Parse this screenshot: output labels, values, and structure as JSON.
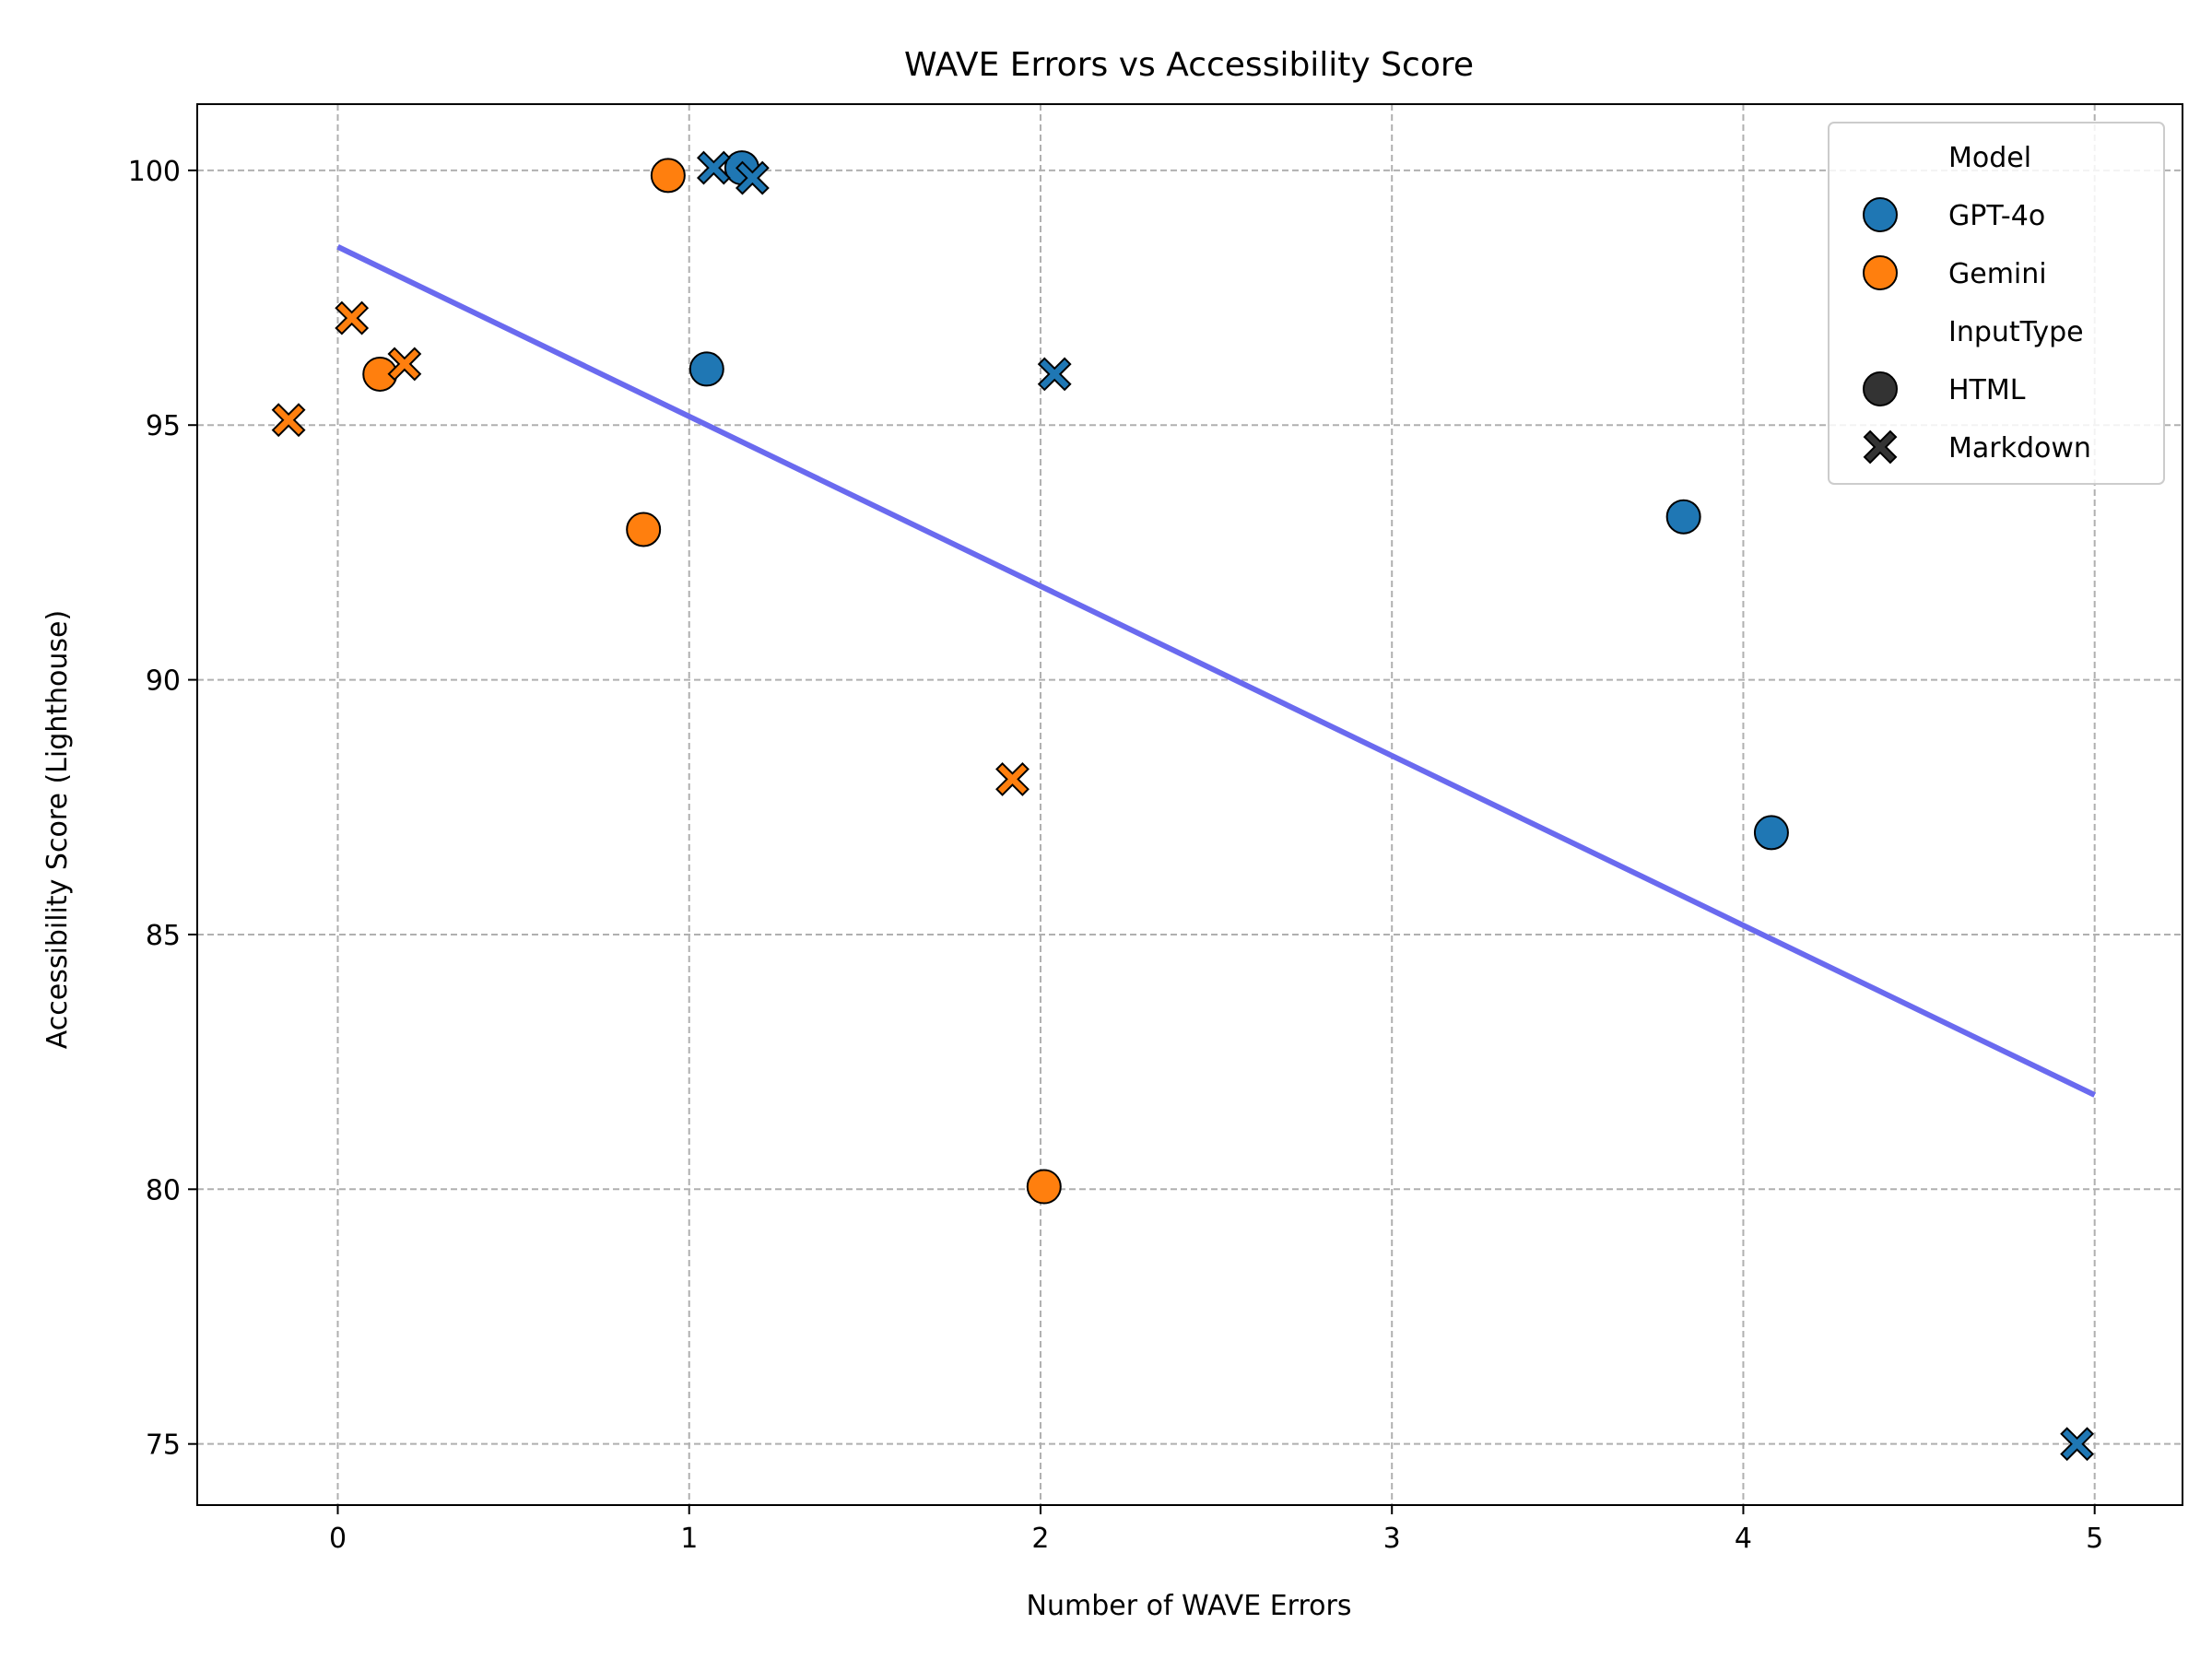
{
  "chart_data": {
    "type": "scatter",
    "title": "WAVE Errors vs Accessibility Score",
    "xlabel": "Number of WAVE Errors",
    "ylabel": "Accessibility Score (Lighthouse)",
    "xlim": [
      -0.4,
      5.25
    ],
    "ylim": [
      73.8,
      101.3
    ],
    "xticks": [
      0,
      1,
      2,
      3,
      4,
      5
    ],
    "yticks": [
      75,
      80,
      85,
      90,
      95,
      100
    ],
    "grid": true,
    "legend_position": "top-right",
    "legend": {
      "hue_title": "Model",
      "style_title": "InputType",
      "hue_entries": [
        {
          "label": "GPT-4o",
          "color": "#1f77b4"
        },
        {
          "label": "Gemini",
          "color": "#ff7f0e"
        }
      ],
      "style_entries": [
        {
          "label": "HTML",
          "marker": "circle"
        },
        {
          "label": "Markdown",
          "marker": "x"
        }
      ]
    },
    "series": [
      {
        "model": "GPT-4o",
        "input": "HTML",
        "color": "#1f77b4",
        "marker": "circle",
        "points": [
          [
            1.05,
            96.1
          ],
          [
            1.15,
            100.05
          ],
          [
            3.83,
            93.2
          ],
          [
            4.08,
            87.0
          ]
        ]
      },
      {
        "model": "GPT-4o",
        "input": "Markdown",
        "color": "#1f77b4",
        "marker": "x",
        "points": [
          [
            1.07,
            100.05
          ],
          [
            1.18,
            99.85
          ],
          [
            2.04,
            96.0
          ],
          [
            4.95,
            75.0
          ]
        ]
      },
      {
        "model": "Gemini",
        "input": "HTML",
        "color": "#ff7f0e",
        "marker": "circle",
        "points": [
          [
            0.12,
            96.0
          ],
          [
            0.94,
            99.9
          ],
          [
            0.87,
            92.95
          ],
          [
            2.01,
            80.05
          ]
        ]
      },
      {
        "model": "Gemini",
        "input": "Markdown",
        "color": "#ff7f0e",
        "marker": "x",
        "points": [
          [
            -0.14,
            95.1
          ],
          [
            0.04,
            97.1
          ],
          [
            0.19,
            96.2
          ],
          [
            1.92,
            88.05
          ]
        ]
      }
    ],
    "trend_line": {
      "x": [
        0,
        5
      ],
      "y": [
        98.5,
        81.85
      ],
      "color": "#6a6aef"
    }
  }
}
